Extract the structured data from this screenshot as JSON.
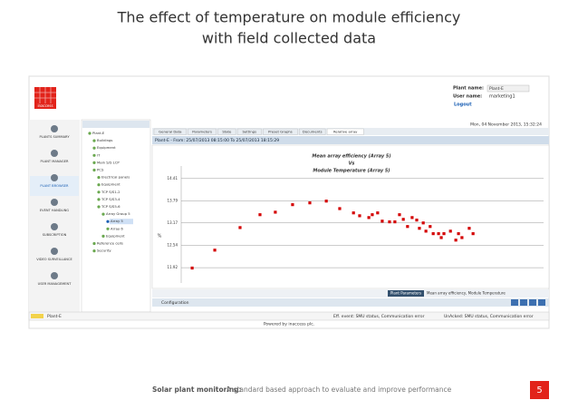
{
  "slide": {
    "title": [
      "The effect of temperature on module efficiency",
      "with field collected data"
    ],
    "footer_lead": "Solar plant monitoring:",
    "footer_text": "A standard based approach to evaluate and improve performance",
    "page_number": 5
  },
  "app": {
    "logo": "inaccess",
    "plant_name_label": "Plant name:",
    "plant_name": "Plant-E",
    "user_name_label": "User name:",
    "user_name": "marketing1",
    "logout": "Logout",
    "datetime": "Mon, 04 November 2013, 15:32:24",
    "nav": [
      "PLANTS SUMMARY",
      "PLANT MANAGER",
      "PLANT BROWSER",
      "EVENT HANDLING",
      "SUBSCRIPTION",
      "VIDEO SURVEILLANCE",
      "USER MANAGEMENT"
    ],
    "tree": [
      "Plant-E",
      "Buildings",
      "Equipment",
      "IT",
      "Main S/S LCP",
      "PCS",
      "Electrical panels",
      "Equipment",
      "TCP S/S1-2",
      "TCP S/S3-4",
      "TCP S/S5-6",
      "Array Group 5",
      "Array 5",
      "Array 6",
      "Equipment",
      "Reference cells",
      "Security"
    ],
    "tabs": [
      "General Data",
      "Parameters",
      "State",
      "Settings",
      "Preset Graphs",
      "Documents",
      "Relative array"
    ],
    "panel_title": "Plant-E - From: 25/07/2013 08:15:00 To 25/07/2013 18:15:29",
    "bottom_tab": "Plant Parameters",
    "bottom_text": "Mean array efficiency, Module Temperature",
    "configuration": "Configuration",
    "status_plant": "Plant-E",
    "status_event": "Eff. event: SMU status, Communication error",
    "status_unacked": "UnAcked: SMU status, Communication error",
    "powered_by": "Powered by inaccess plc."
  },
  "chart_data": {
    "type": "scatter",
    "title": [
      "Mean array efficiency (Array 5)",
      "Vs",
      "Module Temperature (Array 5)"
    ],
    "y_label": "%",
    "color": "#d40000",
    "x": [
      8.3,
      14.2,
      20.8,
      26.0,
      30.0,
      34.5,
      39.0,
      43.3,
      46.8,
      50.4,
      52.0,
      54.4,
      55.3,
      56.7,
      57.9,
      59.8,
      61.2,
      62.4,
      63.4,
      64.5,
      65.7,
      66.9,
      67.6,
      68.6,
      69.3,
      70.4,
      71.2,
      72.6,
      73.3,
      74.0,
      75.7,
      77.1,
      77.8,
      78.7,
      80.6,
      81.6
    ],
    "values": [
      11.91,
      12.41,
      13.04,
      13.4,
      13.47,
      13.68,
      13.73,
      13.78,
      13.57,
      13.45,
      13.37,
      13.32,
      13.4,
      13.45,
      13.22,
      13.2,
      13.2,
      13.4,
      13.27,
      13.07,
      13.32,
      13.25,
      13.02,
      13.17,
      12.94,
      13.07,
      12.87,
      12.87,
      12.76,
      12.87,
      12.94,
      12.69,
      12.87,
      12.76,
      13.02,
      12.87
    ],
    "xlim": [
      0,
      100
    ],
    "ylim": [
      11.34,
      14.76
    ],
    "yticks": [
      11.92,
      12.54,
      13.17,
      13.79,
      14.41
    ],
    "grid": true
  }
}
